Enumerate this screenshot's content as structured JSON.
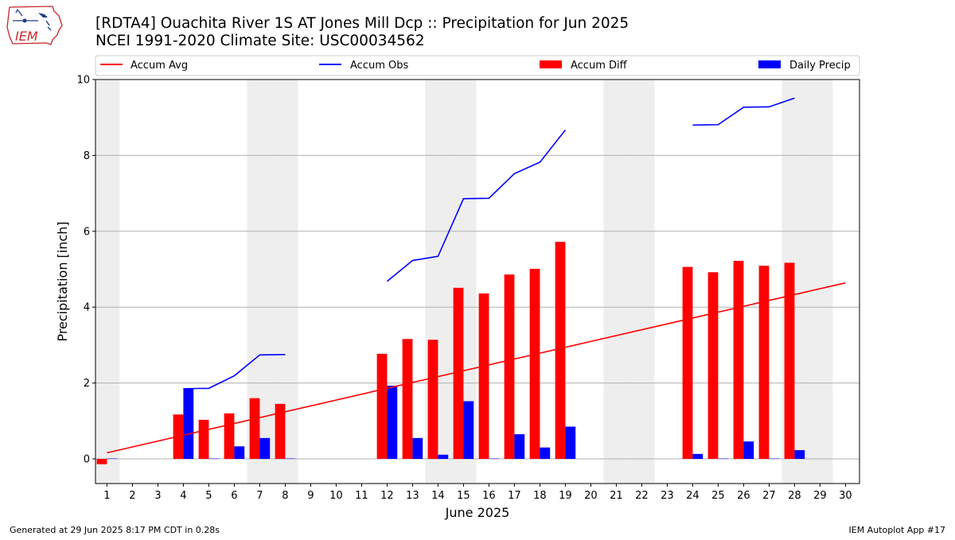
{
  "header": {
    "logo_text": "IEM",
    "title_line1": "[RDTA4] Ouachita River 1S AT Jones Mill Dcp :: Precipitation for Jun 2025",
    "title_line2": "NCEI 1991-2020 Climate Site: USC00034562"
  },
  "footer": {
    "generated": "Generated at 29 Jun 2025 8:17 PM CDT in 0.28s",
    "app": "IEM Autoplot App #17"
  },
  "colors": {
    "accum_avg": "#ff0000",
    "accum_obs": "#0000ff",
    "accum_diff": "#ff0000",
    "daily_precip": "#0000ff",
    "weekend_shade": "#eeeeee",
    "grid": "#b0b0b0"
  },
  "chart_data": {
    "type": "bar",
    "title": "[RDTA4] Ouachita River 1S AT Jones Mill Dcp :: Precipitation for Jun 2025",
    "subtitle": "NCEI 1991-2020 Climate Site: USC00034562",
    "xlabel": "June 2025",
    "ylabel": "Precipitation [inch]",
    "ylim": [
      -0.65,
      10
    ],
    "xlim": [
      0.55,
      30.55
    ],
    "yticks": [
      0,
      2,
      4,
      6,
      8,
      10
    ],
    "xticks": [
      1,
      2,
      3,
      4,
      5,
      6,
      7,
      8,
      9,
      10,
      11,
      12,
      13,
      14,
      15,
      16,
      17,
      18,
      19,
      20,
      21,
      22,
      23,
      24,
      25,
      26,
      27,
      28,
      29,
      30
    ],
    "grid": "y-axis on",
    "legend_position": "top",
    "legend": [
      "Accum Avg",
      "Accum Obs",
      "Accum Diff",
      "Daily Precip"
    ],
    "weekend_days": [
      1,
      7,
      8,
      14,
      15,
      21,
      22,
      28,
      29
    ],
    "series": [
      {
        "name": "Accum Avg",
        "kind": "line",
        "x": [
          1,
          30
        ],
        "values": [
          0.16,
          4.64
        ]
      },
      {
        "name": "Accum Obs",
        "kind": "line",
        "segments": [
          {
            "x": [
              4,
              5,
              6,
              7,
              8
            ],
            "values": [
              1.85,
              1.86,
              2.19,
              2.74,
              2.75
            ]
          },
          {
            "x": [
              12,
              13,
              14,
              15,
              16,
              17,
              18,
              19
            ],
            "values": [
              4.68,
              5.23,
              5.34,
              6.86,
              6.87,
              7.52,
              7.82,
              8.67
            ]
          },
          {
            "x": [
              24,
              25,
              26,
              27,
              28
            ],
            "values": [
              8.8,
              8.81,
              9.27,
              9.28,
              9.51
            ]
          }
        ]
      },
      {
        "name": "Accum Diff",
        "kind": "bar",
        "x": [
          1,
          4,
          5,
          6,
          7,
          8,
          12,
          13,
          14,
          15,
          16,
          17,
          18,
          19,
          24,
          25,
          26,
          27,
          28
        ],
        "values": [
          -0.14,
          1.17,
          1.03,
          1.2,
          1.6,
          1.45,
          2.77,
          3.16,
          3.14,
          4.51,
          4.36,
          4.86,
          5.01,
          5.72,
          5.06,
          4.92,
          5.22,
          5.09,
          5.17
        ]
      },
      {
        "name": "Daily Precip",
        "kind": "bar",
        "x": [
          1,
          4,
          5,
          6,
          7,
          8,
          12,
          13,
          14,
          15,
          16,
          17,
          18,
          19,
          24,
          25,
          26,
          27,
          28
        ],
        "values": [
          0.01,
          1.85,
          0.01,
          0.33,
          0.55,
          0.01,
          1.93,
          0.55,
          0.11,
          1.52,
          0.01,
          0.65,
          0.3,
          0.85,
          0.13,
          0.01,
          0.46,
          0.01,
          0.23
        ]
      }
    ]
  }
}
